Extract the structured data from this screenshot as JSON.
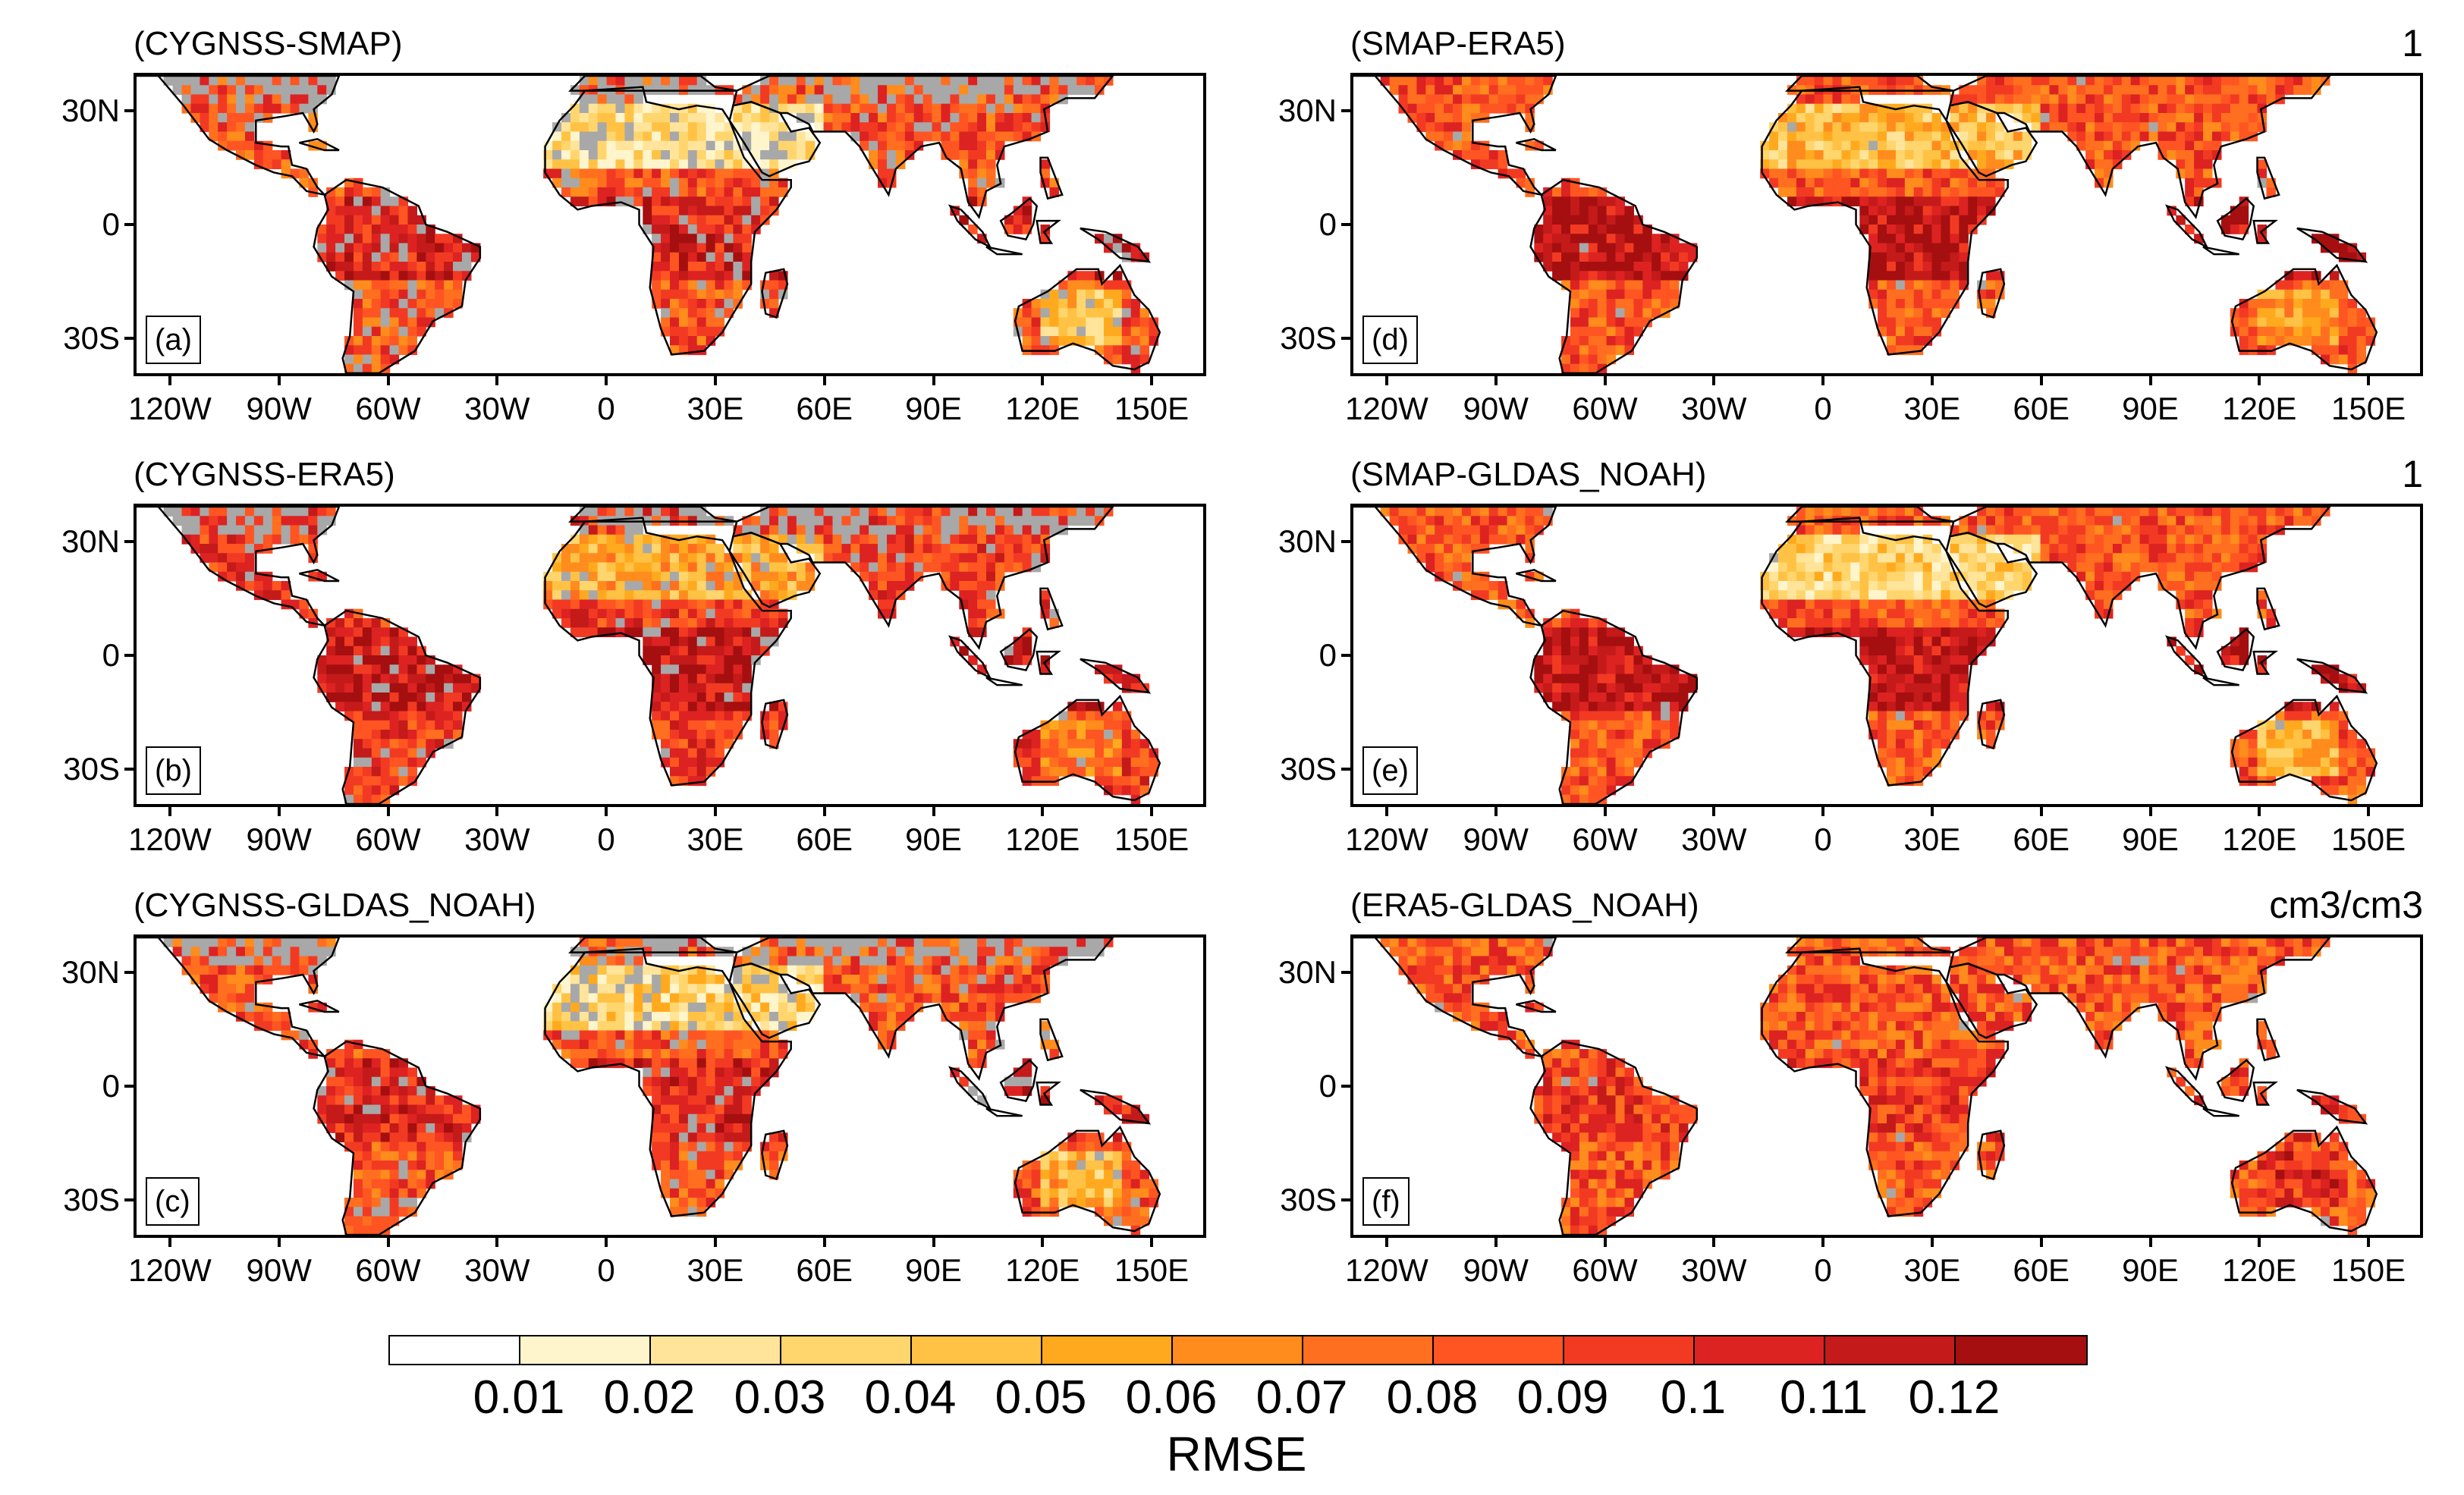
{
  "panels": [
    {
      "title": "(CYGNSS-SMAP)",
      "tag": "(a)",
      "corner": "",
      "lon_labels": [
        "120W",
        "90W",
        "60W",
        "30W",
        "0",
        "30E",
        "60E",
        "90E",
        "120E",
        "150E"
      ]
    },
    {
      "title": "(CYGNSS-ERA5)",
      "tag": "(b)",
      "corner": "",
      "lon_labels": [
        "120W",
        "90W",
        "60W",
        "30W",
        "0",
        "30E",
        "60E",
        "90E",
        "120E",
        "150E"
      ]
    },
    {
      "title": "(CYGNSS-GLDAS_NOAH)",
      "tag": "(c)",
      "corner": "",
      "lon_labels": [
        "120W",
        "90W",
        "60W",
        "30W",
        "0",
        "30E",
        "60E",
        "90E",
        "120E",
        "150E"
      ]
    },
    {
      "title": "(SMAP-ERA5)",
      "tag": "(d)",
      "corner": "1",
      "lon_labels": [
        "120W",
        "90W",
        "60W",
        "30W",
        "0",
        "30E",
        "60E",
        "90E",
        "120E",
        "150E"
      ]
    },
    {
      "title": "(SMAP-GLDAS_NOAH)",
      "tag": "(e)",
      "corner": "1",
      "lon_labels": [
        "120W",
        "90W",
        "60W",
        "30W",
        "0",
        "30E",
        "60E",
        "90E",
        "120E",
        "150E"
      ]
    },
    {
      "title": "(ERA5-GLDAS_NOAH)",
      "tag": "(f)",
      "corner": "cm3/cm3",
      "lon_labels": [
        "120W",
        "90W",
        "60W",
        "30W",
        "0",
        "30E",
        "60E",
        "90E",
        "120E",
        "150E"
      ]
    }
  ],
  "lat_labels": [
    "30N",
    "0",
    "30S"
  ],
  "colorbar": {
    "title": "RMSE",
    "labels": [
      "0.01",
      "0.02",
      "0.03",
      "0.04",
      "0.05",
      "0.06",
      "0.07",
      "0.08",
      "0.09",
      "0.1",
      "0.11",
      "0.12"
    ],
    "colors": [
      "#ffffff",
      "#fff5cc",
      "#ffe49a",
      "#ffd56d",
      "#ffc244",
      "#ffaa1e",
      "#ff8c1c",
      "#ff6f1f",
      "#ff5522",
      "#f23a23",
      "#dd2222",
      "#c41a1a",
      "#a50f10"
    ]
  },
  "map_colors": {
    "no_data": "#a8a8a8",
    "coast": "#000000"
  }
}
